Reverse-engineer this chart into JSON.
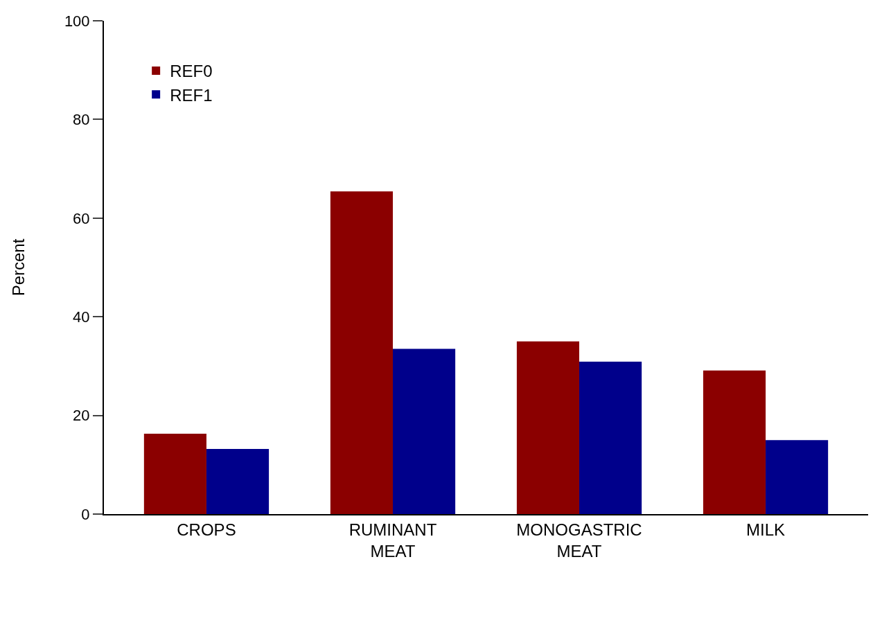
{
  "chart_data": {
    "type": "bar",
    "ylabel": "Percent",
    "categories": [
      "CROPS",
      "RUMINANT MEAT",
      "MONOGASTRIC MEAT",
      "MILK"
    ],
    "series": [
      {
        "name": "REF0",
        "color": "#8b0000",
        "values": [
          16.3,
          65.4,
          35.0,
          29.1
        ]
      },
      {
        "name": "REF1",
        "color": "#00008b",
        "values": [
          13.2,
          33.5,
          30.9,
          15.0
        ]
      }
    ],
    "ylim": [
      0,
      100
    ],
    "yticks": [
      0,
      20,
      40,
      60,
      80,
      100
    ],
    "legend": "top left"
  }
}
